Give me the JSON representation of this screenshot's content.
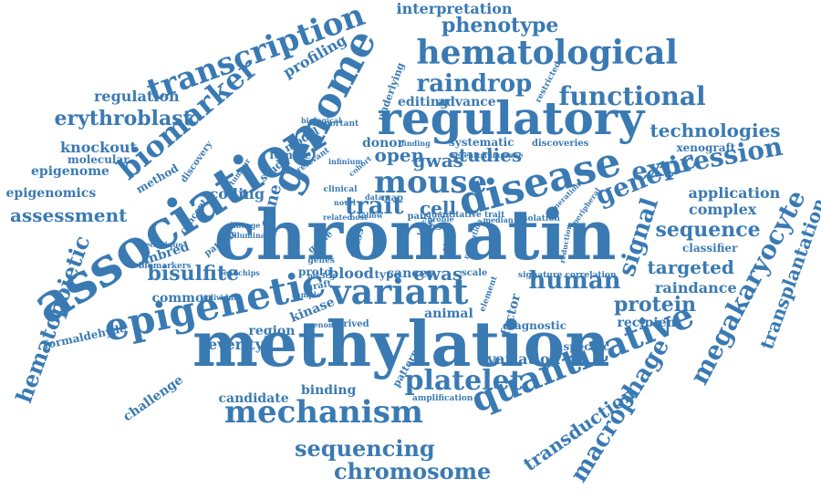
{
  "colors": {
    "word": "#3a7ab3",
    "background": "#ffffff"
  },
  "words": [
    "chromatin",
    "methylation",
    "association",
    "regulatory",
    "genome",
    "epigenetic",
    "disease",
    "variant",
    "hematological",
    "mouse",
    "quantitative",
    "mechanism",
    "transcription",
    "biomarker",
    "megakaryocyte",
    "hematopoietic",
    "platelet",
    "human",
    "expression",
    "genetic",
    "sequencing",
    "chromosome",
    "functional",
    "phenotype",
    "transplantation",
    "raindrop",
    "signal",
    "sequence",
    "macrophage",
    "transduction",
    "erythroblast",
    "bisulfite",
    "assessment",
    "protein",
    "trait",
    "gwas",
    "studies",
    "technologies",
    "targeted",
    "knockout",
    "regulation",
    "interpretation",
    "profiling",
    "epigenome",
    "epigenomics",
    "application",
    "complex",
    "raindance",
    "recipient",
    "variation",
    "candidate",
    "binding",
    "severity",
    "region",
    "common",
    "open",
    "cell",
    "ewas",
    "coding",
    "gene",
    "donor",
    "xenograft",
    "classifier",
    "specific",
    "challenge",
    "inbred",
    "formaldehyde",
    "factor",
    "animal",
    "cancer",
    "blood",
    "type",
    "kinase",
    "editing",
    "advance",
    "underlying",
    "molecular",
    "method",
    "discovery",
    "model",
    "female",
    "study",
    "concept",
    "patient",
    "proto",
    "graft",
    "class",
    "guide",
    "diagnostic",
    "pattern",
    "derived",
    "systematic",
    "discoveries",
    "hsct",
    "pair",
    "scale",
    "isolation",
    "signature correlation",
    "amplification",
    "restricted",
    "important",
    "biological",
    "illumina",
    "lineage",
    "tumour",
    "biomarkers",
    "technique",
    "beadchips",
    "individual",
    "genomic",
    "relevant",
    "finding",
    "cohort",
    "map",
    "clinical",
    "infinium",
    "follow",
    "novel",
    "host",
    "pik3cg",
    "related",
    "lines",
    "resolution",
    "research immune",
    "median",
    "generation",
    "peripheral",
    "element",
    "stem",
    "reduction",
    "level",
    "quantitative trait",
    "profile",
    "data",
    "genes",
    "sample"
  ]
}
